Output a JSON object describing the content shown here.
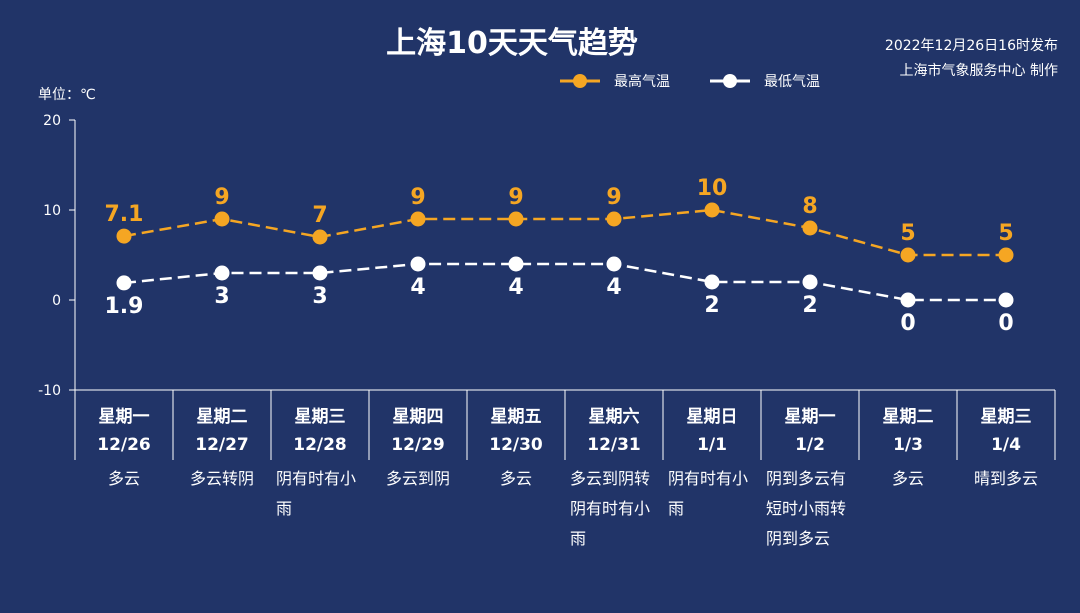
{
  "header": {
    "title": "上海10天天气趋势",
    "publish_time": "2022年12月26日16时发布",
    "publisher": "上海市气象服务中心 制作",
    "unit": "单位：℃"
  },
  "legend": {
    "high": "最高气温",
    "low": "最低气温"
  },
  "colors": {
    "background": "#213468",
    "high": "#f5a623",
    "low": "#ffffff",
    "axis": "#ffffff"
  },
  "chart_data": {
    "type": "line",
    "title": "上海10天天气趋势",
    "ylabel": "单位：℃",
    "ylim": [
      -10,
      20
    ],
    "yticks": [
      "20",
      "10",
      "0",
      "-10"
    ],
    "categories": [
      "星期一 12/26",
      "星期二 12/27",
      "星期三 12/28",
      "星期四 12/29",
      "星期五 12/30",
      "星期六 12/31",
      "星期日 1/1",
      "星期一 1/2",
      "星期二 1/3",
      "星期三 1/4"
    ],
    "weekdays": [
      "星期一",
      "星期二",
      "星期三",
      "星期四",
      "星期五",
      "星期六",
      "星期日",
      "星期一",
      "星期二",
      "星期三"
    ],
    "dates": [
      "12/26",
      "12/27",
      "12/28",
      "12/29",
      "12/30",
      "12/31",
      "1/1",
      "1/2",
      "1/3",
      "1/4"
    ],
    "weather": [
      [
        "多云"
      ],
      [
        "多云转阴"
      ],
      [
        "阴有时有小",
        "雨"
      ],
      [
        "多云到阴"
      ],
      [
        "多云"
      ],
      [
        "多云到阴转",
        "阴有时有小",
        "雨"
      ],
      [
        "阴有时有小",
        "雨"
      ],
      [
        "阴到多云有",
        "短时小雨转",
        "阴到多云"
      ],
      [
        "多云"
      ],
      [
        "晴到多云"
      ]
    ],
    "series": [
      {
        "name": "最高气温",
        "values": [
          7.1,
          9,
          7,
          9,
          9,
          9,
          10,
          8,
          5,
          5
        ],
        "labels": [
          "7.1",
          "9",
          "7",
          "9",
          "9",
          "9",
          "10",
          "8",
          "5",
          "5"
        ]
      },
      {
        "name": "最低气温",
        "values": [
          1.9,
          3,
          3,
          4,
          4,
          4,
          2,
          2,
          0,
          0
        ],
        "labels": [
          "1.9",
          "3",
          "3",
          "4",
          "4",
          "4",
          "2",
          "2",
          "0",
          "0"
        ]
      }
    ]
  }
}
